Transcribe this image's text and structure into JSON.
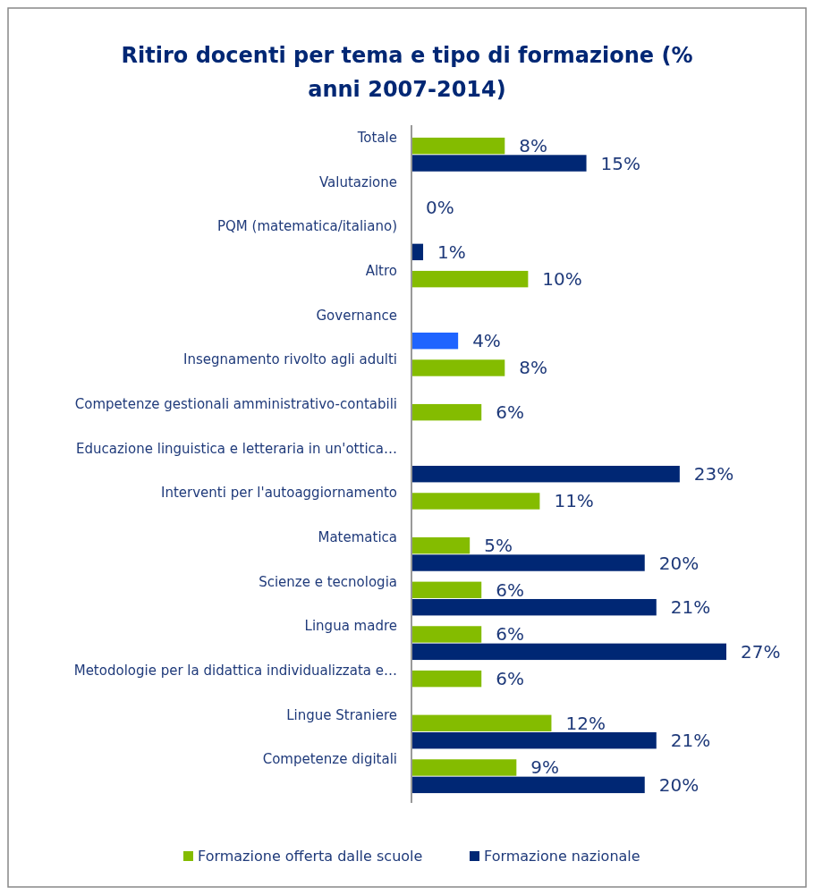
{
  "chart_data": {
    "type": "bar",
    "orientation": "horizontal",
    "title": "Ritiro docenti per tema e tipo di formazione (% anni 2007-2014)",
    "categories": [
      "Totale",
      "Valutazione",
      "PQM (matematica/italiano)",
      "Altro",
      "Governance",
      "Insegnamento rivolto agli adulti",
      "Competenze gestionali amministrativo-contabili",
      "Educazione linguistica e letteraria in un'ottica…",
      "Interventi per l'autoaggiornamento",
      "Matematica",
      "Scienze e tecnologia",
      "Lingua madre",
      "Metodologie per la didattica individualizzata e…",
      "Lingue Straniere",
      "Competenze digitali"
    ],
    "series": [
      {
        "name": "Formazione offerta dalle scuole",
        "color": "#84bc00",
        "values": [
          8,
          null,
          null,
          10,
          null,
          8,
          6,
          null,
          11,
          5,
          6,
          6,
          6,
          12,
          9
        ],
        "value_labels": [
          "8%",
          null,
          null,
          "10%",
          null,
          "8%",
          "6%",
          null,
          "11%",
          "5%",
          "6%",
          "6%",
          "6%",
          "12%",
          "9%"
        ]
      },
      {
        "name": "Formazione nazionale",
        "color": "#002774",
        "colors": [
          "#002774",
          "#002774",
          "#002774",
          null,
          "#1f64ff",
          null,
          null,
          "#002774",
          null,
          "#002774",
          "#002774",
          "#002774",
          null,
          "#002774",
          "#002774"
        ],
        "values": [
          15,
          0,
          1,
          null,
          4,
          null,
          null,
          23,
          null,
          20,
          21,
          27,
          null,
          21,
          20
        ],
        "value_labels": [
          "15%",
          "0%",
          "1%",
          null,
          "4%",
          null,
          null,
          "23%",
          null,
          "20%",
          "21%",
          "27%",
          null,
          "21%",
          "20%"
        ]
      }
    ],
    "legend": "bottom"
  }
}
